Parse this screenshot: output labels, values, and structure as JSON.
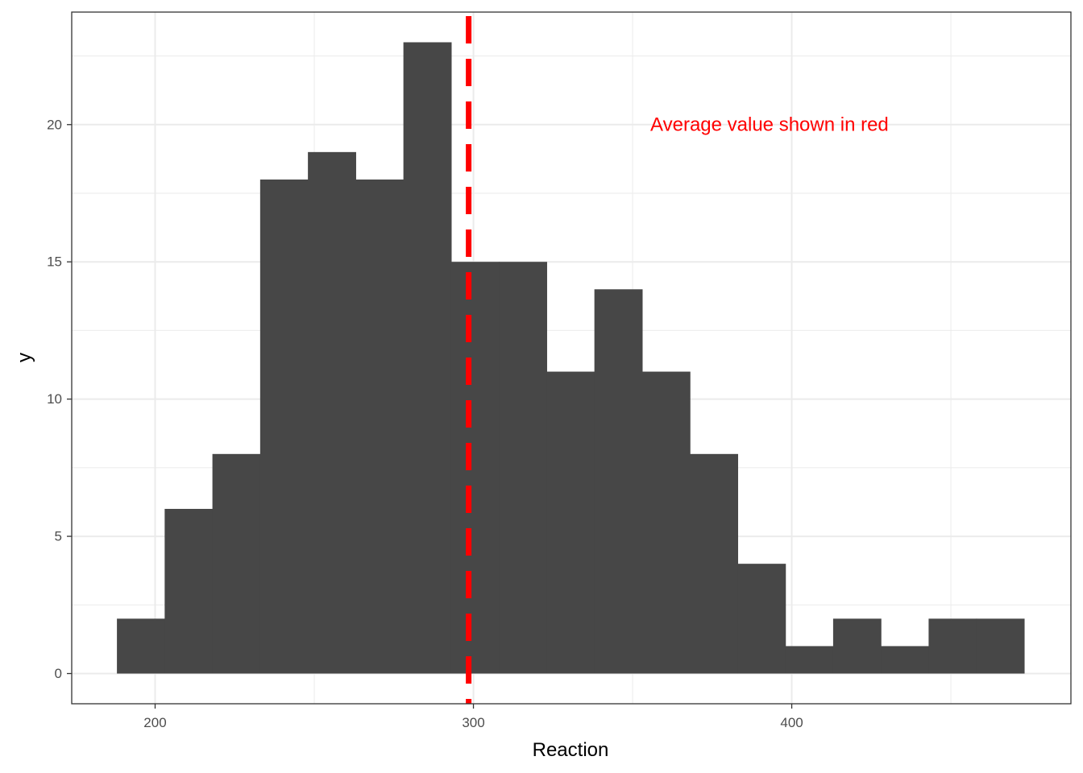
{
  "chart_data": {
    "type": "bar",
    "subtype": "histogram",
    "xlabel": "Reaction",
    "ylabel": "y",
    "xlim": [
      173.8,
      487.7
    ],
    "ylim": [
      -1.1,
      24.1
    ],
    "x_ticks": [
      200,
      300,
      400
    ],
    "x_tick_labels": [
      "200",
      "300",
      "400"
    ],
    "y_ticks": [
      0,
      5,
      10,
      15,
      20
    ],
    "y_tick_labels": [
      "0",
      "5",
      "10",
      "15",
      "20"
    ],
    "bin_edges": [
      188.0,
      203.0,
      218.0,
      233.0,
      248.0,
      263.0,
      278.0,
      293.0,
      308.0,
      323.0,
      338.0,
      353.0,
      368.0,
      383.0,
      398.0,
      413.0,
      428.0,
      443.0,
      458.0,
      473.0
    ],
    "values": [
      2,
      6,
      8,
      18,
      19,
      18,
      23,
      15,
      15,
      11,
      14,
      11,
      8,
      4,
      1,
      2,
      1,
      2,
      2
    ],
    "bar_color": "#474747",
    "grid": true,
    "reference_line": {
      "x": 298.5,
      "style": "dashed",
      "color": "#ff0000"
    },
    "annotation": {
      "text": "Average value shown in red",
      "x": 393,
      "y": 20,
      "color": "#ff0000"
    }
  }
}
